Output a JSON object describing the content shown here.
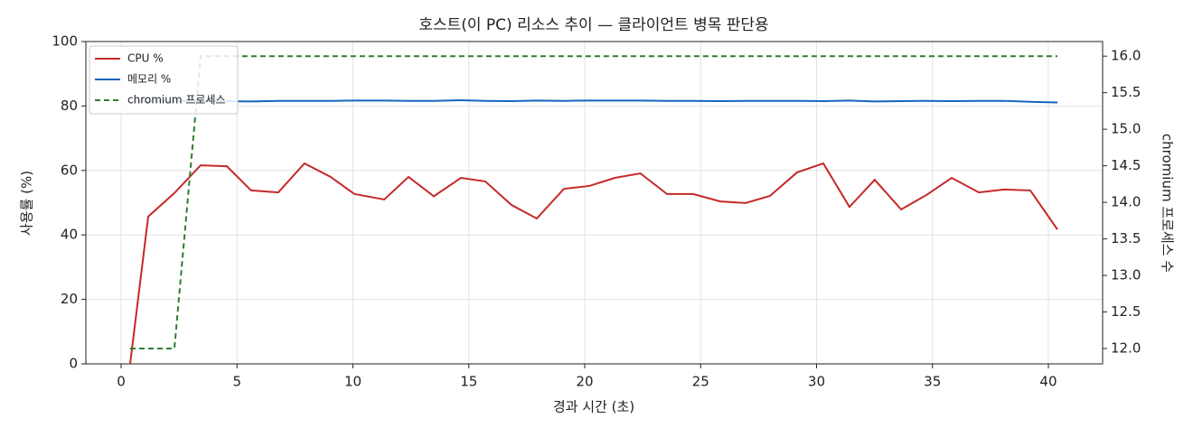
{
  "chart_data": {
    "type": "line",
    "title": "호스트(이 PC) 리소스 추이 — 클라이언트 병목 판단용",
    "xlabel": "경과 시간 (초)",
    "ylabel": "사용률 (%)",
    "y2label": "chromium 프로세스 수",
    "x": [
      0.39,
      1.17,
      2.3,
      3.43,
      4.56,
      5.61,
      6.78,
      7.91,
      9.04,
      10.06,
      11.35,
      12.4,
      13.49,
      14.66,
      15.71,
      16.84,
      17.93,
      19.1,
      20.2,
      21.3,
      22.4,
      23.55,
      24.68,
      25.85,
      26.94,
      27.99,
      29.16,
      30.29,
      31.42,
      32.51,
      33.65,
      34.74,
      35.83,
      37.0,
      38.09,
      39.22,
      40.39
    ],
    "series": [
      {
        "name": "CPU %",
        "color": "#c62828",
        "linestyle": "solid",
        "values": [
          0,
          45.7,
          53,
          61.6,
          61.3,
          53.8,
          53.2,
          62.2,
          58,
          52.7,
          51,
          58,
          52,
          57.7,
          56.6,
          49.3,
          45.1,
          54.3,
          55.2,
          57.7,
          59.1,
          52.7,
          52.7,
          50.4,
          49.9,
          52.1,
          59.4,
          62.2,
          48.7,
          57.1,
          47.9,
          52.4,
          57.7,
          53.2,
          54.1,
          53.8,
          41.7
        ]
      },
      {
        "name": "메모리 %",
        "color": "#1565c0",
        "linestyle": "solid",
        "values": [
          81.3,
          81.4,
          81.5,
          81.5,
          81.5,
          81.4,
          81.6,
          81.6,
          81.6,
          81.7,
          81.7,
          81.6,
          81.6,
          81.8,
          81.6,
          81.5,
          81.7,
          81.6,
          81.7,
          81.7,
          81.7,
          81.6,
          81.6,
          81.5,
          81.6,
          81.6,
          81.6,
          81.5,
          81.7,
          81.4,
          81.5,
          81.6,
          81.5,
          81.6,
          81.6,
          81.3,
          81.1
        ]
      },
      {
        "name": "chromium 프로세스",
        "color": "#2e7d32",
        "linestyle": "dashed",
        "axis": "y2",
        "values": [
          12,
          12,
          12,
          16,
          16,
          16,
          16,
          16,
          16,
          16,
          16,
          16,
          16,
          16,
          16,
          16,
          16,
          16,
          16,
          16,
          16,
          16,
          16,
          16,
          16,
          16,
          16,
          16,
          16,
          16,
          16,
          16,
          16,
          16,
          16,
          16,
          16
        ]
      }
    ],
    "xlim": [
      -1.52,
      42.34
    ],
    "xticks": [
      0,
      5,
      10,
      15,
      20,
      25,
      30,
      35,
      40
    ],
    "ylim": [
      0,
      100
    ],
    "yticks": [
      0,
      20,
      40,
      60,
      80,
      100
    ],
    "y2lim": [
      11.79,
      16.2
    ],
    "y2ticks": [
      {
        "value": 12,
        "label": "12.0"
      },
      12.5,
      {
        "value": 13,
        "label": "13.0"
      },
      13.5,
      {
        "value": 14,
        "label": "14.0"
      },
      14.5,
      {
        "value": 15,
        "label": "15.0"
      },
      15.5,
      {
        "value": 16,
        "label": "16.0"
      }
    ],
    "grid": true,
    "legend": "upper left"
  }
}
